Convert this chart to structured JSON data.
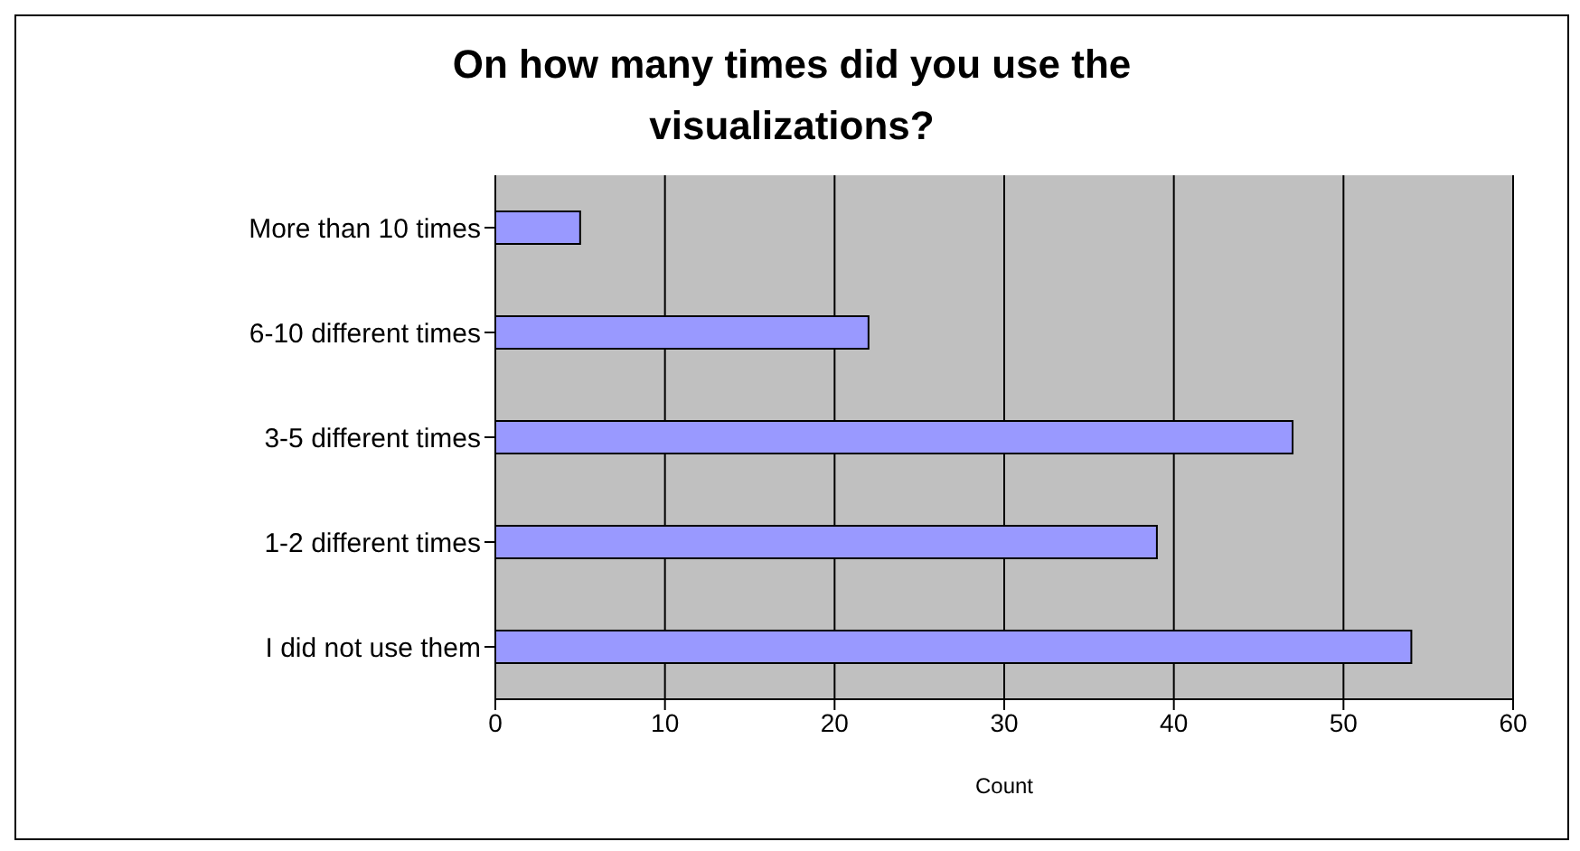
{
  "chart_data": {
    "type": "bar",
    "orientation": "horizontal",
    "title": "On how many times did you use the visualizations?",
    "xlabel": "Count",
    "categories": [
      "More than 10 times",
      "6-10 different times",
      "3-5 different times",
      "1-2 different times",
      "I did not use them"
    ],
    "values": [
      5,
      22,
      47,
      39,
      54
    ],
    "color": "#9999ff",
    "xlim": [
      0,
      60
    ],
    "xticks": [
      0,
      10,
      20,
      30,
      40,
      50,
      60
    ],
    "grid": "x"
  }
}
